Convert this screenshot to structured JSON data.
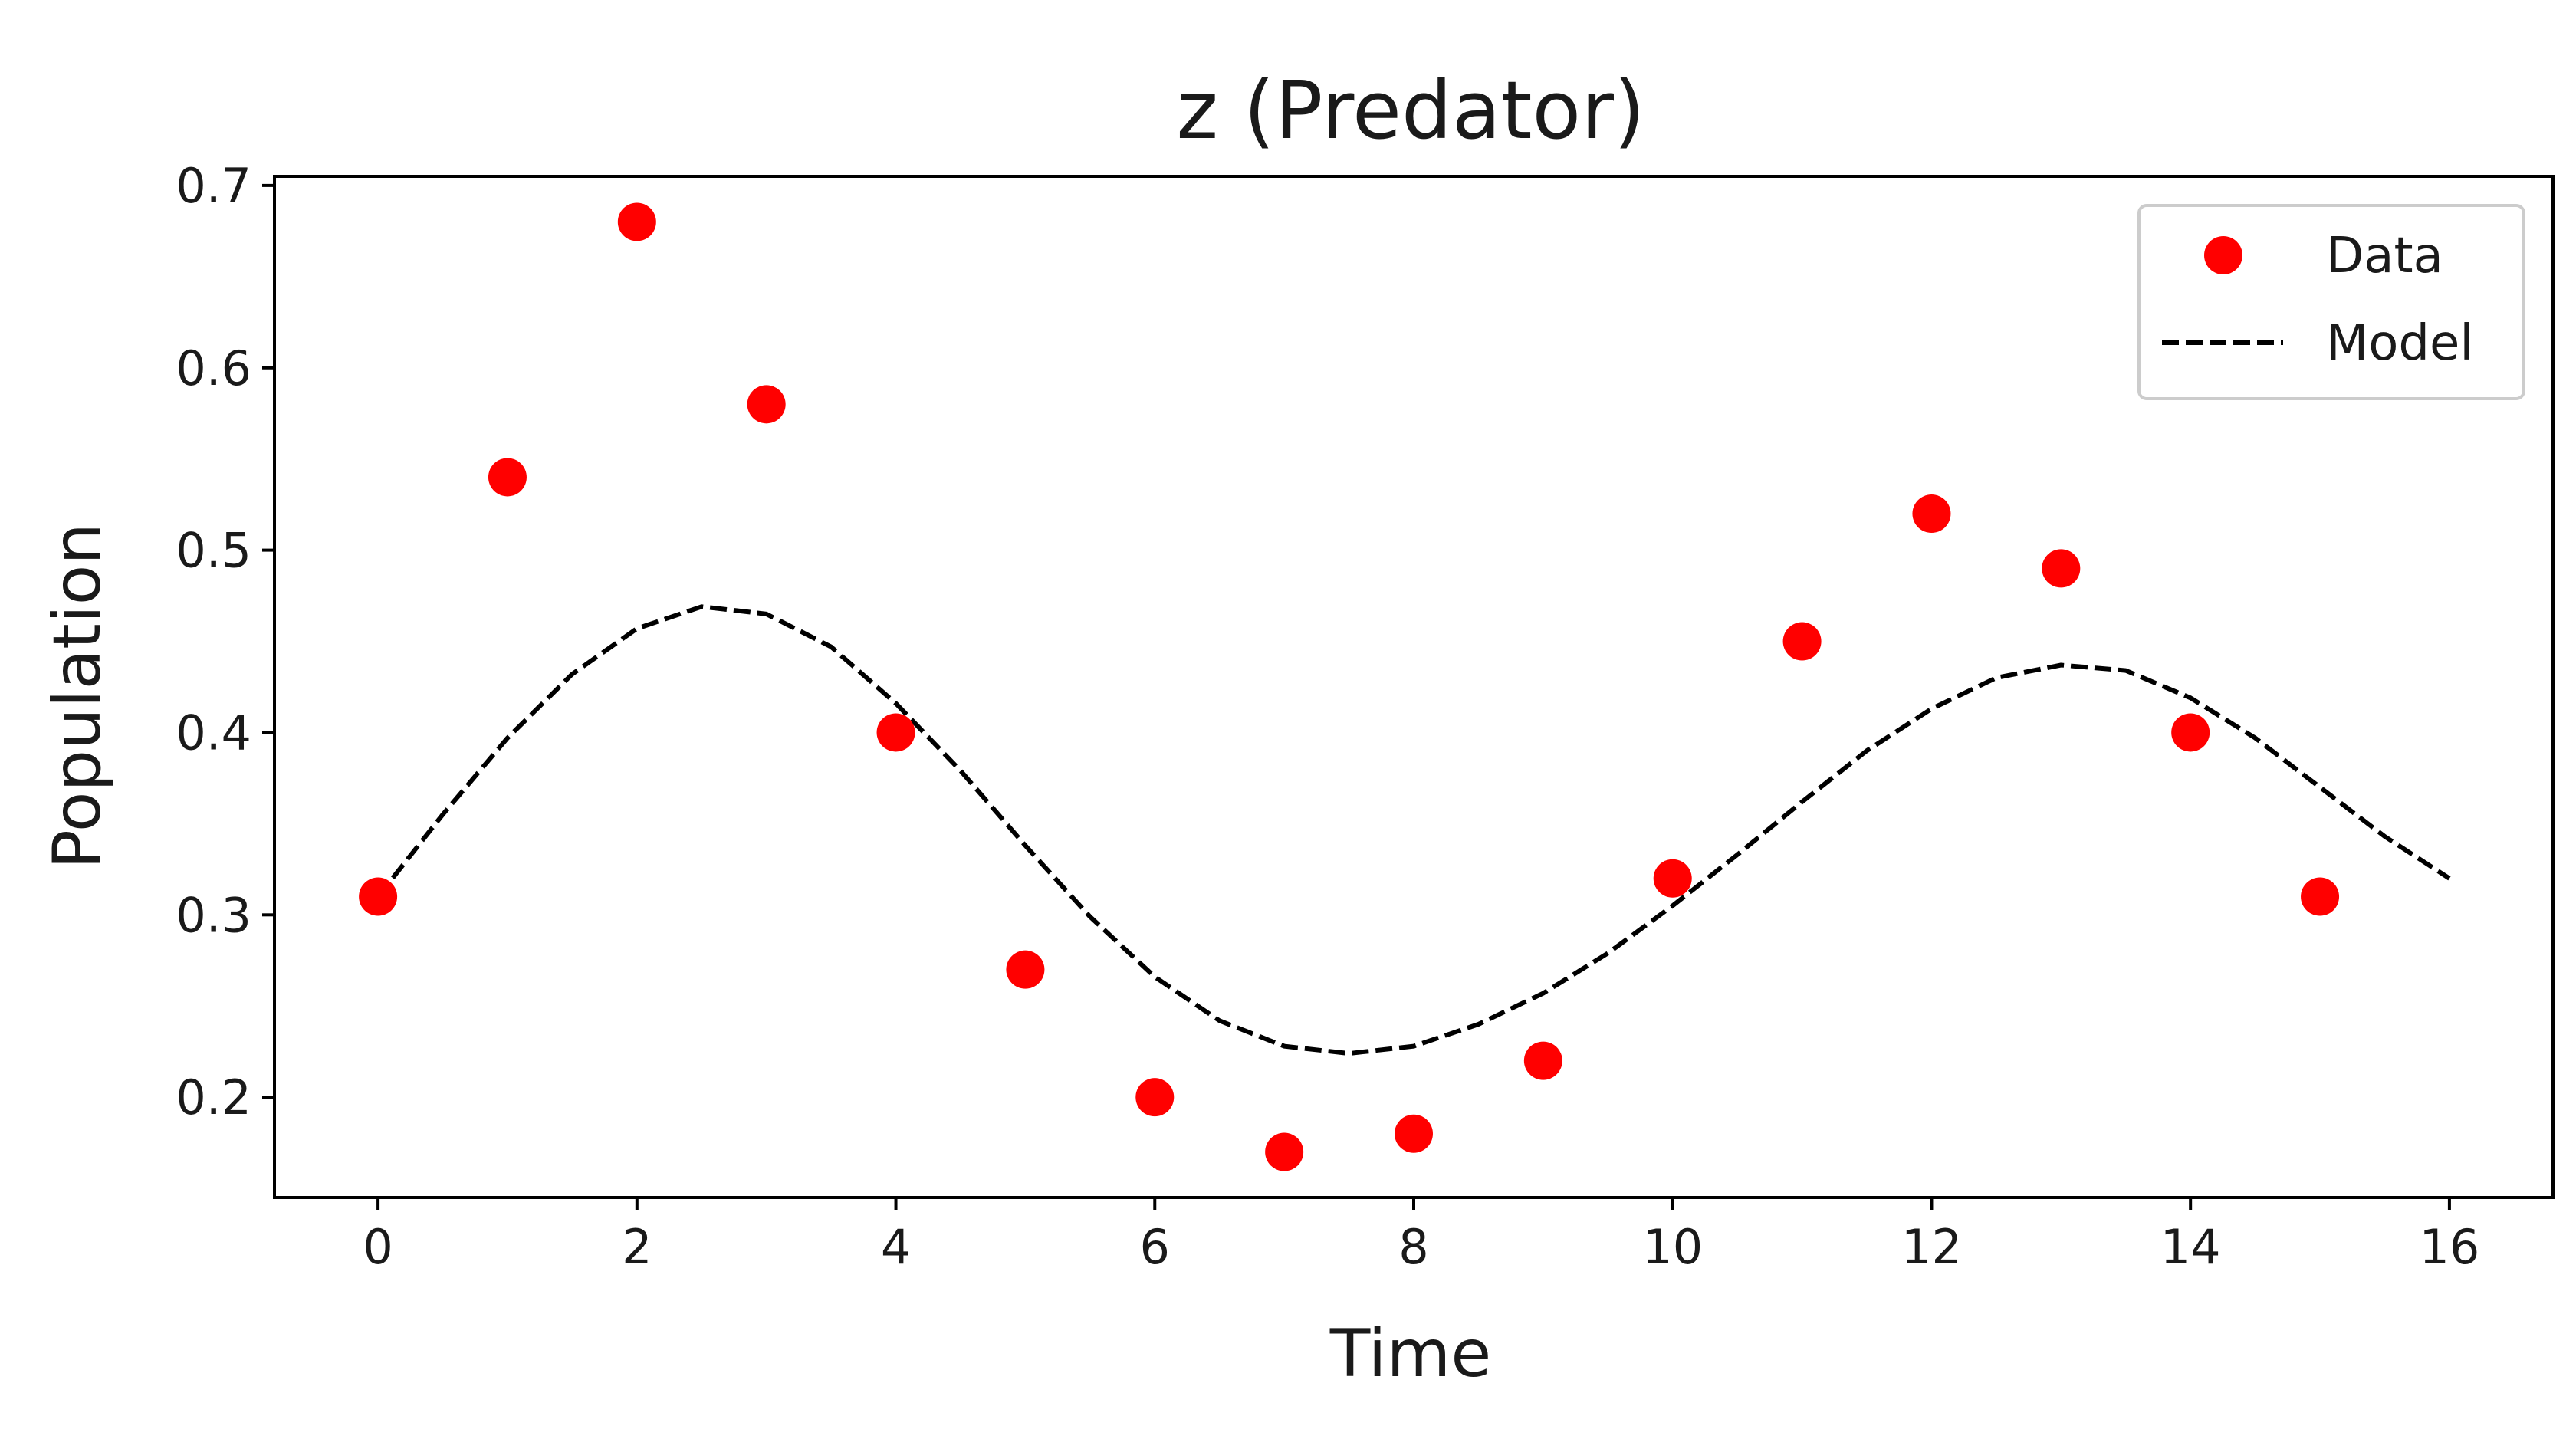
{
  "chart_data": {
    "type": "scatter",
    "title": "z (Predator)",
    "xlabel": "Time",
    "ylabel": "Population",
    "xlim": [
      -0.8,
      16.8
    ],
    "ylim": [
      0.145,
      0.705
    ],
    "xticks": [
      0,
      2,
      4,
      6,
      8,
      10,
      12,
      14,
      16
    ],
    "yticks": [
      0.2,
      0.3,
      0.4,
      0.5,
      0.6,
      0.7
    ],
    "grid": false,
    "legend_position": "top-right",
    "series": [
      {
        "name": "Data",
        "kind": "scatter",
        "color": "#ff0000",
        "x": [
          0,
          1,
          2,
          3,
          4,
          5,
          6,
          7,
          8,
          9,
          10,
          11,
          12,
          13,
          14,
          15
        ],
        "y": [
          0.31,
          0.54,
          0.68,
          0.58,
          0.4,
          0.27,
          0.2,
          0.17,
          0.18,
          0.22,
          0.32,
          0.45,
          0.52,
          0.49,
          0.4,
          0.31
        ]
      },
      {
        "name": "Model",
        "kind": "line",
        "style": "dashed",
        "color": "#000000",
        "x": [
          0,
          0.5,
          1,
          1.5,
          2,
          2.5,
          3,
          3.5,
          4,
          4.5,
          5,
          5.5,
          6,
          6.5,
          7,
          7.5,
          8,
          8.5,
          9,
          9.5,
          10,
          10.5,
          11,
          11.5,
          12,
          12.5,
          13,
          13.5,
          14,
          14.5,
          15,
          15.5,
          16
        ],
        "y": [
          0.31,
          0.355,
          0.397,
          0.432,
          0.457,
          0.469,
          0.465,
          0.447,
          0.416,
          0.379,
          0.338,
          0.299,
          0.266,
          0.242,
          0.228,
          0.224,
          0.228,
          0.24,
          0.257,
          0.279,
          0.305,
          0.333,
          0.362,
          0.39,
          0.413,
          0.43,
          0.437,
          0.434,
          0.419,
          0.397,
          0.37,
          0.343,
          0.32
        ]
      }
    ]
  }
}
